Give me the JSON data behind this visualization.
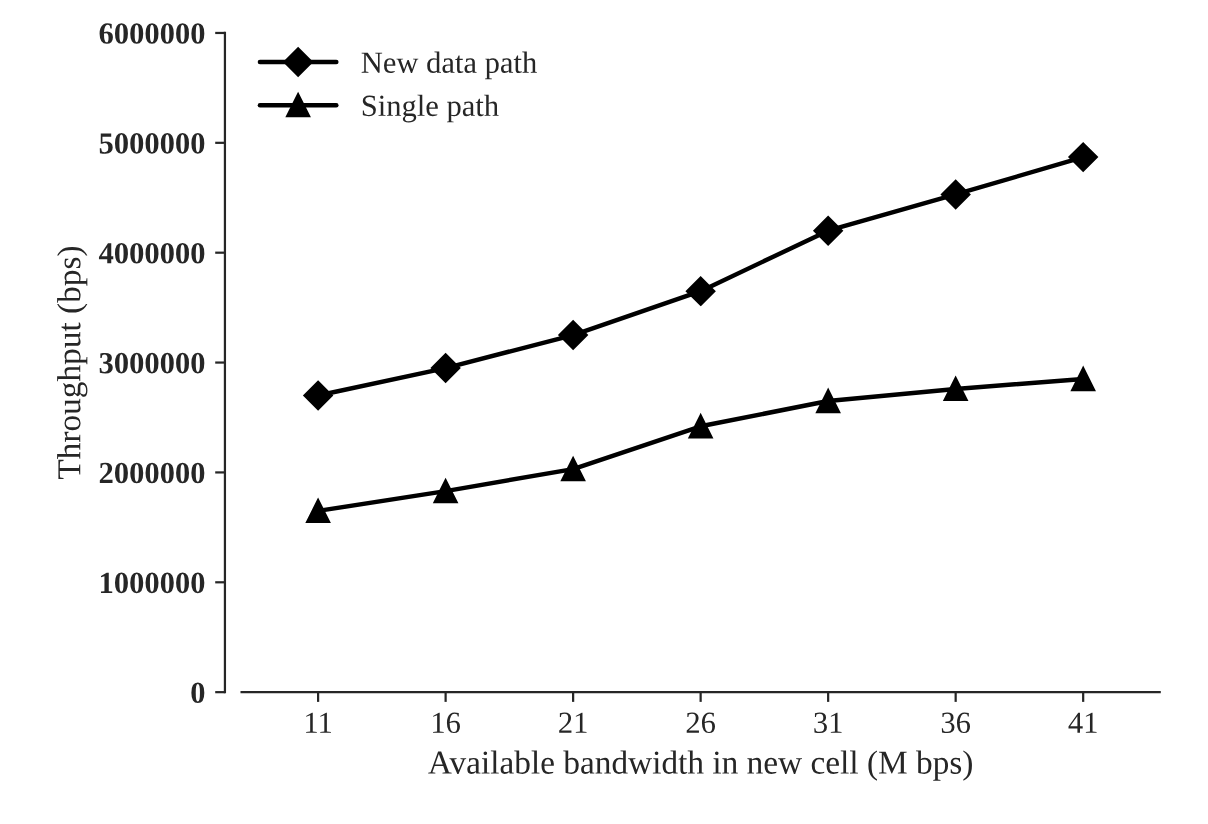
{
  "chart_data": {
    "type": "line",
    "xlabel": "Available bandwidth in new cell (M bps)",
    "ylabel": "Throughput (bps)",
    "categories": [
      "11",
      "16",
      "21",
      "26",
      "31",
      "36",
      "41"
    ],
    "series": [
      {
        "name": "New data path",
        "color": "#000000",
        "marker": "diamond",
        "values": [
          2700000,
          2950000,
          3250000,
          3650000,
          4200000,
          4530000,
          4870000
        ]
      },
      {
        "name": "Single path",
        "color": "#000000",
        "marker": "triangle",
        "values": [
          1650000,
          1830000,
          2030000,
          2420000,
          2650000,
          2760000,
          2850000
        ]
      }
    ],
    "ylim": [
      0,
      6000000
    ],
    "yticks": [
      0,
      1000000,
      2000000,
      3000000,
      4000000,
      5000000,
      6000000
    ],
    "grid": false,
    "legend": "top left",
    "line_style": "solid"
  }
}
